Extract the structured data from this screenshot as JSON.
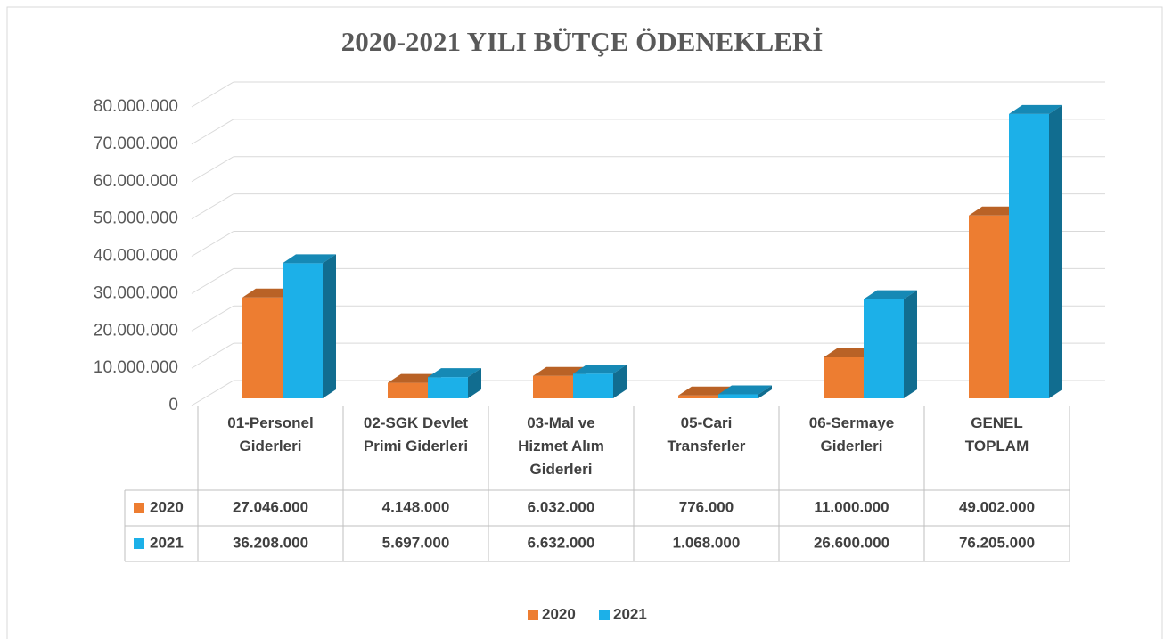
{
  "chart_data": {
    "type": "bar",
    "title": "2020-2021 YILI BÜTÇE ÖDENEKLERİ",
    "categories": [
      "01-Personel Giderleri",
      "02-SGK Devlet Primi Giderleri",
      "03-Mal ve Hizmet Alım Giderleri",
      "05-Cari Transferler",
      "06-Sermaye Giderleri",
      "GENEL TOPLAM"
    ],
    "series": [
      {
        "name": "2020",
        "color": "#ed7d31",
        "values": [
          27046000,
          4148000,
          6032000,
          776000,
          11000000,
          49002000
        ],
        "value_labels": [
          "27.046.000",
          "4.148.000",
          "6.032.000",
          "776.000",
          "11.000.000",
          "49.002.000"
        ]
      },
      {
        "name": "2021",
        "color": "#1cb0e8",
        "values": [
          36208000,
          5697000,
          6632000,
          1068000,
          26600000,
          76205000
        ],
        "value_labels": [
          "36.208.000",
          "5.697.000",
          "6.632.000",
          "1.068.000",
          "26.600.000",
          "76.205.000"
        ]
      }
    ],
    "ylim": [
      0,
      80000000
    ],
    "yticks": [
      0,
      {
        "value": 10000000,
        "label": "10.000.000"
      },
      {
        "value": 20000000,
        "label": "20.000.000"
      },
      {
        "value": 30000000,
        "label": "30.000.000"
      },
      {
        "value": 40000000,
        "label": "40.000.000"
      },
      {
        "value": 50000000,
        "label": "50.000.000"
      },
      {
        "value": 60000000,
        "label": "60.000.000"
      },
      {
        "value": 70000000,
        "label": "70.000.000"
      },
      {
        "value": 80000000,
        "label": "80.000.000"
      }
    ],
    "grid": true,
    "legend": "bottom"
  }
}
